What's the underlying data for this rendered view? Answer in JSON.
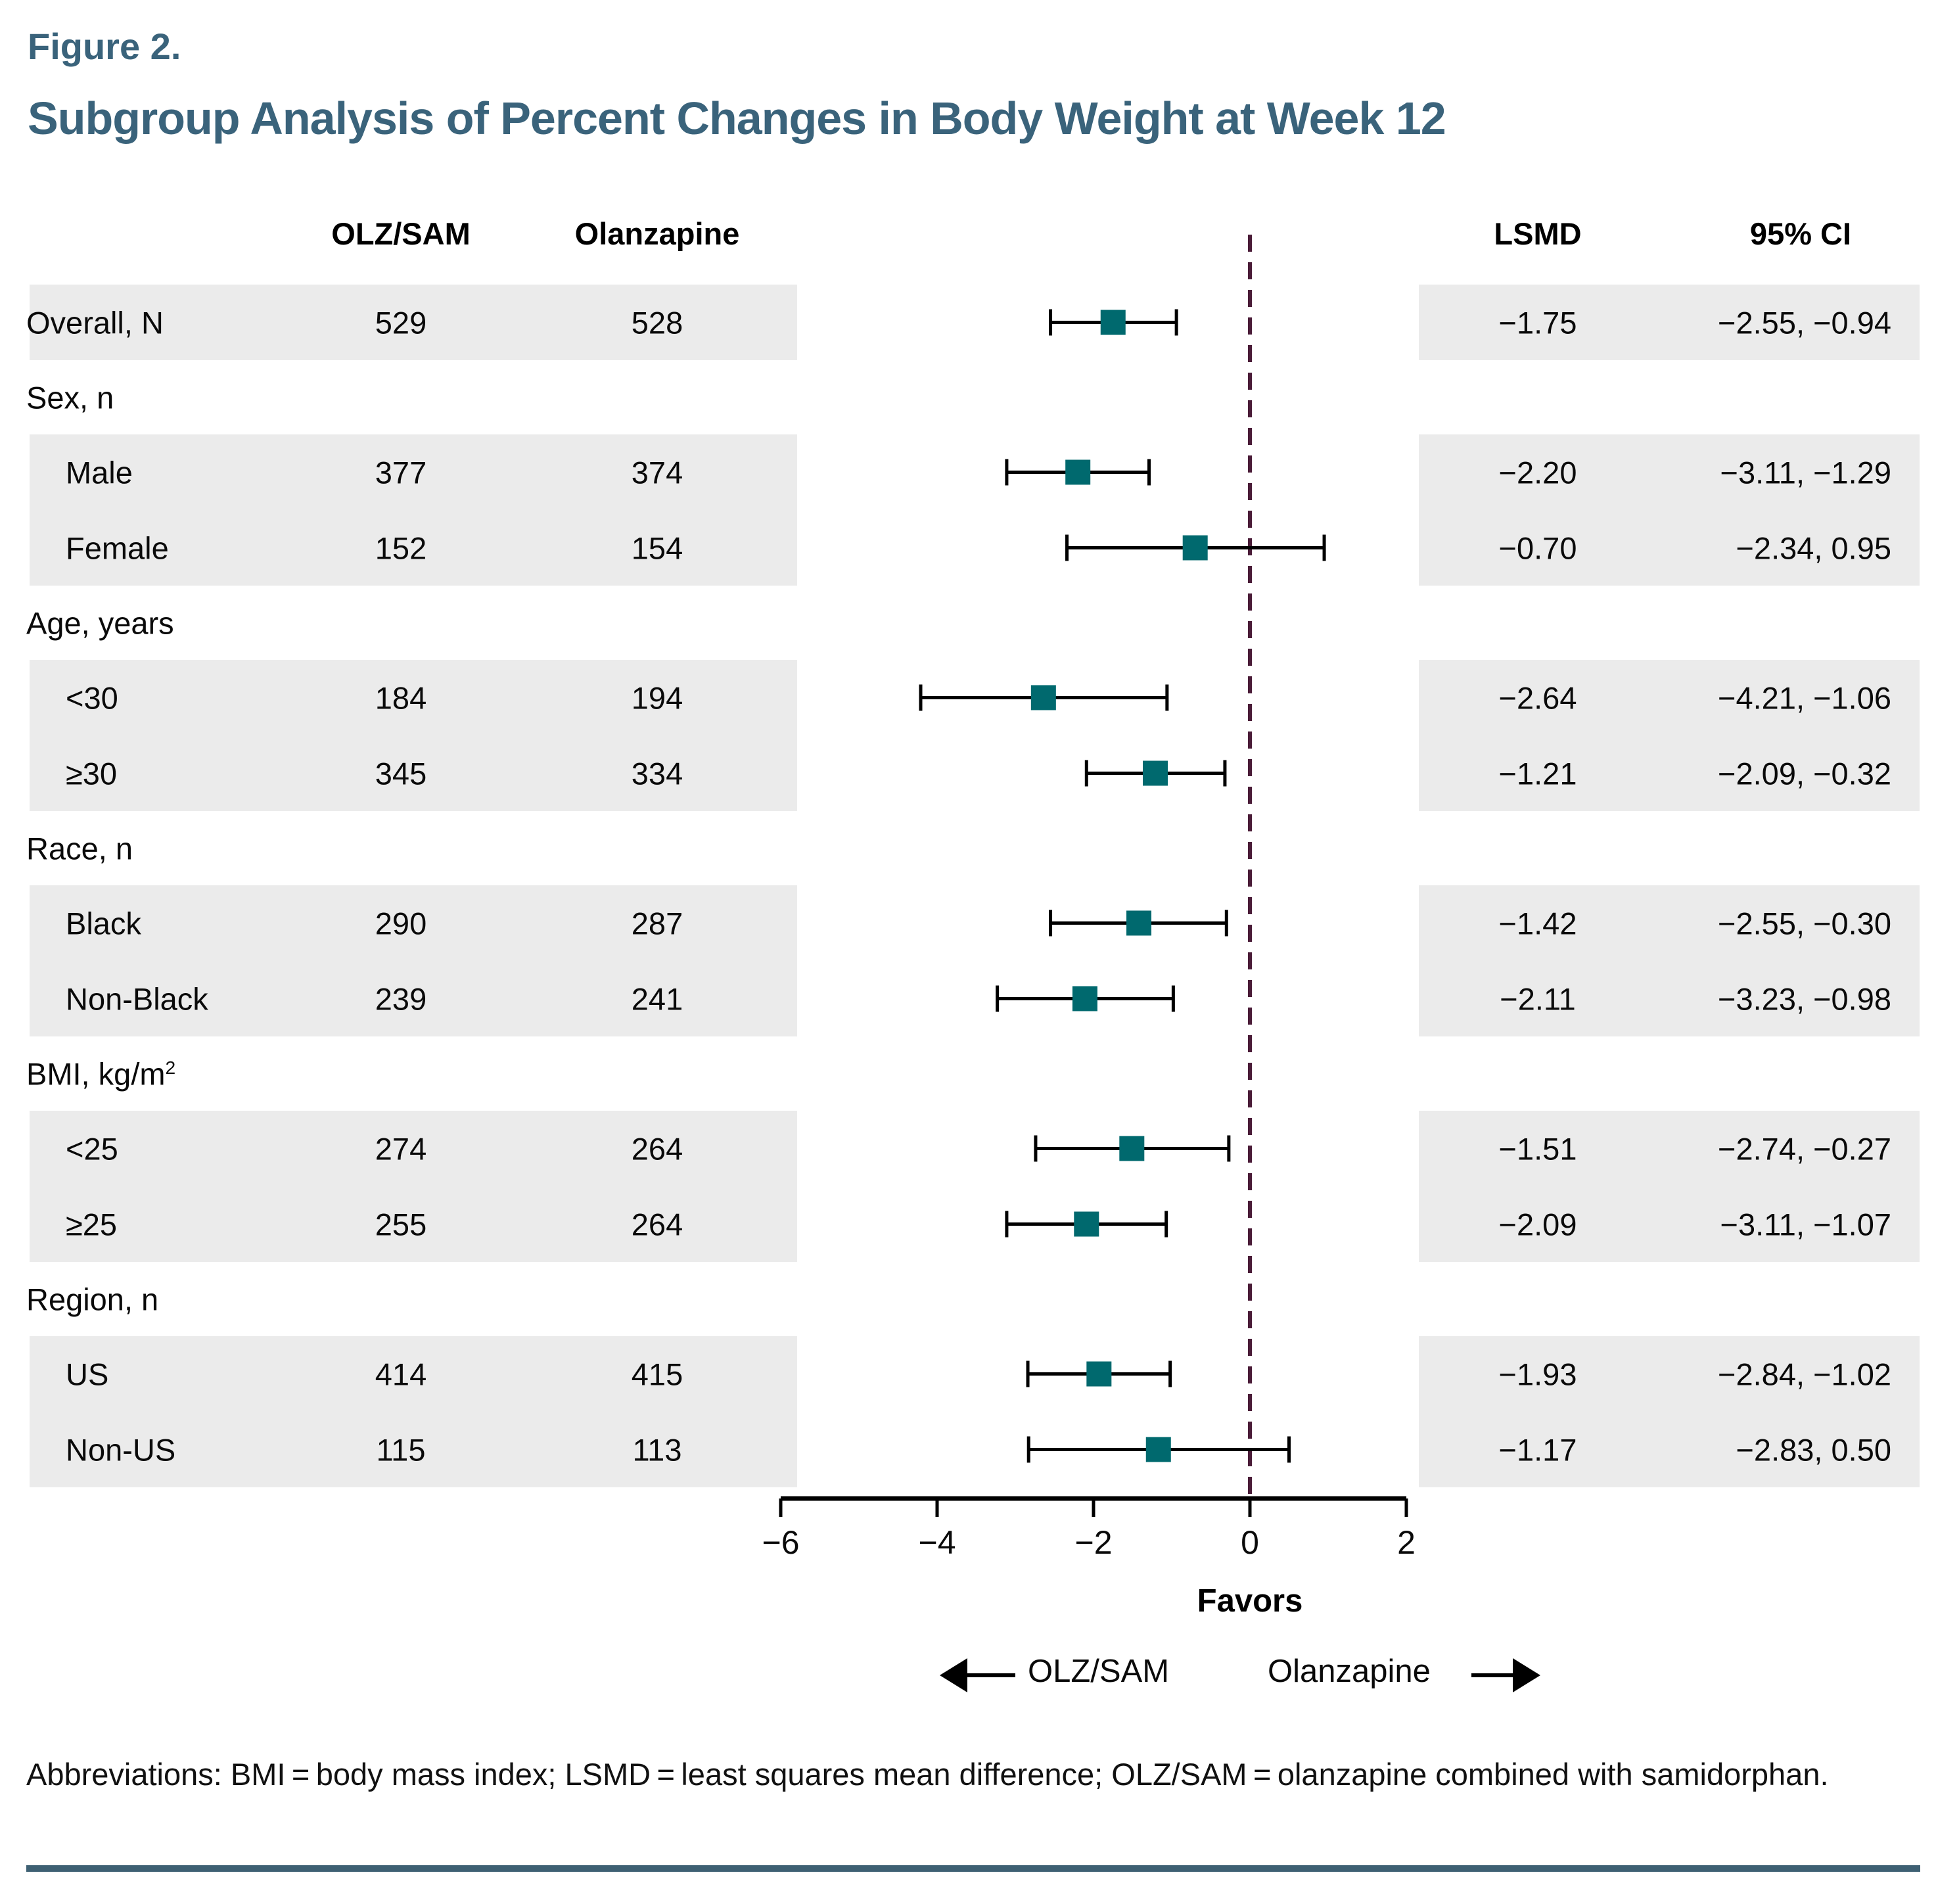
{
  "figure_label": "Figure 2.",
  "title": "Subgroup Analysis of Percent Changes in Body Weight at Week 12",
  "columns": {
    "olz": "OLZ/SAM",
    "olan": "Olanzapine",
    "lsmd": "LSMD",
    "ci": "95% CI"
  },
  "chart_data": {
    "type": "forest",
    "xlim": [
      -6,
      2
    ],
    "x_ticks": [
      -6,
      -4,
      -2,
      0,
      2
    ],
    "zero_line": 0,
    "grid": false,
    "favors": {
      "label": "Favors",
      "left": "OLZ/SAM",
      "right": "Olanzapine"
    },
    "rows": [
      {
        "kind": "data",
        "label": "Overall, N",
        "indent": false,
        "olz": "529",
        "olan": "528",
        "lsmd": "−1.75",
        "ci": "−2.55, −0.94",
        "est": -1.75,
        "lo": -2.55,
        "hi": -0.94
      },
      {
        "kind": "group",
        "label": "Sex, n"
      },
      {
        "kind": "data",
        "label": "Male",
        "indent": true,
        "olz": "377",
        "olan": "374",
        "lsmd": "−2.20",
        "ci": "−3.11, −1.29",
        "est": -2.2,
        "lo": -3.11,
        "hi": -1.29
      },
      {
        "kind": "data",
        "label": "Female",
        "indent": true,
        "olz": "152",
        "olan": "154",
        "lsmd": "−0.70",
        "ci": "−2.34, 0.95",
        "est": -0.7,
        "lo": -2.34,
        "hi": 0.95
      },
      {
        "kind": "group",
        "label": "Age, years"
      },
      {
        "kind": "data",
        "label": "<30",
        "indent": true,
        "olz": "184",
        "olan": "194",
        "lsmd": "−2.64",
        "ci": "−4.21, −1.06",
        "est": -2.64,
        "lo": -4.21,
        "hi": -1.06
      },
      {
        "kind": "data",
        "label": "≥30",
        "indent": true,
        "olz": "345",
        "olan": "334",
        "lsmd": "−1.21",
        "ci": "−2.09, −0.32",
        "est": -1.21,
        "lo": -2.09,
        "hi": -0.32
      },
      {
        "kind": "group",
        "label": "Race, n"
      },
      {
        "kind": "data",
        "label": "Black",
        "indent": true,
        "olz": "290",
        "olan": "287",
        "lsmd": "−1.42",
        "ci": "−2.55, −0.30",
        "est": -1.42,
        "lo": -2.55,
        "hi": -0.3
      },
      {
        "kind": "data",
        "label": "Non-Black",
        "indent": true,
        "olz": "239",
        "olan": "241",
        "lsmd": "−2.11",
        "ci": "−3.23, −0.98",
        "est": -2.11,
        "lo": -3.23,
        "hi": -0.98
      },
      {
        "kind": "group",
        "label": "BMI, kg/m²"
      },
      {
        "kind": "data",
        "label": "<25",
        "indent": true,
        "olz": "274",
        "olan": "264",
        "lsmd": "−1.51",
        "ci": "−2.74, −0.27",
        "est": -1.51,
        "lo": -2.74,
        "hi": -0.27
      },
      {
        "kind": "data",
        "label": "≥25",
        "indent": true,
        "olz": "255",
        "olan": "264",
        "lsmd": "−2.09",
        "ci": "−3.11, −1.07",
        "est": -2.09,
        "lo": -3.11,
        "hi": -1.07
      },
      {
        "kind": "group",
        "label": "Region, n"
      },
      {
        "kind": "data",
        "label": "US",
        "indent": true,
        "olz": "414",
        "olan": "415",
        "lsmd": "−1.93",
        "ci": "−2.84, −1.02",
        "est": -1.93,
        "lo": -2.84,
        "hi": -1.02
      },
      {
        "kind": "data",
        "label": "Non-US",
        "indent": true,
        "olz": "115",
        "olan": "113",
        "lsmd": "−1.17",
        "ci": "−2.83, 0.50",
        "est": -1.17,
        "lo": -2.83,
        "hi": 0.5
      }
    ]
  },
  "footnote": "Abbreviations: BMI = body mass index; LSMD = least squares mean difference; OLZ/SAM = olanzapine combined with samidorphan.",
  "colors": {
    "title": "#3a637b",
    "band_gray": "#ebebeb",
    "marker_teal": "#00696e",
    "zero_line_maroon": "#4a1c38",
    "axis_black": "#000000",
    "bottom_rule": "#3e6073"
  }
}
